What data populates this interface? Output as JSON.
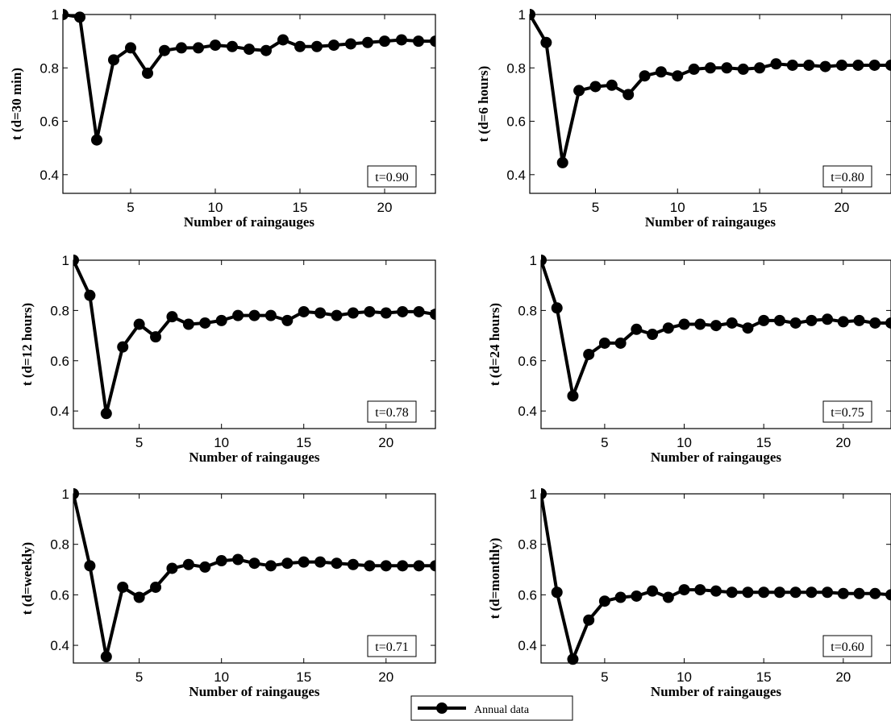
{
  "chart_data": [
    {
      "type": "line",
      "xlabel": "Number of raingauges",
      "ylabel": "t (d=30 min)",
      "annotation": "t=0.90",
      "xlim": [
        1,
        23
      ],
      "ylim": [
        0.33,
        1.0
      ],
      "xticks": [
        5,
        10,
        15,
        20
      ],
      "yticks": [
        0.4,
        0.6,
        0.8,
        1
      ],
      "x": [
        1,
        2,
        3,
        4,
        5,
        6,
        7,
        8,
        9,
        10,
        11,
        12,
        13,
        14,
        15,
        16,
        17,
        18,
        19,
        20,
        21,
        22,
        23
      ],
      "series": [
        {
          "values": [
            1.0,
            0.99,
            0.53,
            0.83,
            0.875,
            0.78,
            0.865,
            0.875,
            0.875,
            0.885,
            0.88,
            0.87,
            0.865,
            0.905,
            0.88,
            0.88,
            0.885,
            0.89,
            0.895,
            0.9,
            0.905,
            0.9,
            0.9
          ]
        }
      ]
    },
    {
      "type": "line",
      "xlabel": "Number of raingauges",
      "ylabel": "t (d=6 hours)",
      "annotation": "t=0.80",
      "xlim": [
        1,
        23
      ],
      "ylim": [
        0.33,
        1.0
      ],
      "xticks": [
        5,
        10,
        15,
        20
      ],
      "yticks": [
        0.4,
        0.6,
        0.8,
        1
      ],
      "x": [
        1,
        2,
        3,
        4,
        5,
        6,
        7,
        8,
        9,
        10,
        11,
        12,
        13,
        14,
        15,
        16,
        17,
        18,
        19,
        20,
        21,
        22,
        23
      ],
      "series": [
        {
          "values": [
            1.0,
            0.895,
            0.445,
            0.715,
            0.73,
            0.735,
            0.7,
            0.77,
            0.785,
            0.77,
            0.795,
            0.8,
            0.8,
            0.795,
            0.8,
            0.815,
            0.81,
            0.81,
            0.805,
            0.81,
            0.81,
            0.81,
            0.81
          ]
        }
      ]
    },
    {
      "type": "line",
      "xlabel": "Number of raingauges",
      "ylabel": "t (d=12 hours)",
      "annotation": "t=0.78",
      "xlim": [
        1,
        23
      ],
      "ylim": [
        0.33,
        1.0
      ],
      "xticks": [
        5,
        10,
        15,
        20
      ],
      "yticks": [
        0.4,
        0.6,
        0.8,
        1
      ],
      "x": [
        1,
        2,
        3,
        4,
        5,
        6,
        7,
        8,
        9,
        10,
        11,
        12,
        13,
        14,
        15,
        16,
        17,
        18,
        19,
        20,
        21,
        22,
        23
      ],
      "series": [
        {
          "values": [
            1.0,
            0.86,
            0.39,
            0.655,
            0.745,
            0.695,
            0.775,
            0.745,
            0.75,
            0.76,
            0.78,
            0.78,
            0.78,
            0.76,
            0.795,
            0.79,
            0.78,
            0.79,
            0.795,
            0.79,
            0.795,
            0.795,
            0.785
          ]
        }
      ]
    },
    {
      "type": "line",
      "xlabel": "Number of raingauges",
      "ylabel": "t (d=24 hours)",
      "annotation": "t=0.75",
      "xlim": [
        1,
        23
      ],
      "ylim": [
        0.33,
        1.0
      ],
      "xticks": [
        5,
        10,
        15,
        20
      ],
      "yticks": [
        0.4,
        0.6,
        0.8,
        1
      ],
      "x": [
        1,
        2,
        3,
        4,
        5,
        6,
        7,
        8,
        9,
        10,
        11,
        12,
        13,
        14,
        15,
        16,
        17,
        18,
        19,
        20,
        21,
        22,
        23
      ],
      "series": [
        {
          "values": [
            1.0,
            0.81,
            0.46,
            0.625,
            0.67,
            0.67,
            0.725,
            0.705,
            0.73,
            0.745,
            0.745,
            0.74,
            0.75,
            0.73,
            0.76,
            0.76,
            0.75,
            0.76,
            0.765,
            0.755,
            0.76,
            0.75,
            0.75
          ]
        }
      ]
    },
    {
      "type": "line",
      "xlabel": "Number of raingauges",
      "ylabel": "t (d=weekly)",
      "annotation": "t=0.71",
      "xlim": [
        1,
        23
      ],
      "ylim": [
        0.33,
        1.0
      ],
      "xticks": [
        5,
        10,
        15,
        20
      ],
      "yticks": [
        0.4,
        0.6,
        0.8,
        1
      ],
      "x": [
        1,
        2,
        3,
        4,
        5,
        6,
        7,
        8,
        9,
        10,
        11,
        12,
        13,
        14,
        15,
        16,
        17,
        18,
        19,
        20,
        21,
        22,
        23
      ],
      "series": [
        {
          "values": [
            1.0,
            0.715,
            0.355,
            0.63,
            0.59,
            0.63,
            0.705,
            0.72,
            0.71,
            0.735,
            0.74,
            0.725,
            0.715,
            0.725,
            0.73,
            0.73,
            0.725,
            0.72,
            0.715,
            0.715,
            0.715,
            0.715,
            0.715
          ]
        }
      ]
    },
    {
      "type": "line",
      "xlabel": "Number of raingauges",
      "ylabel": "t (d=monthly)",
      "annotation": "t=0.60",
      "xlim": [
        1,
        23
      ],
      "ylim": [
        0.33,
        1.0
      ],
      "xticks": [
        5,
        10,
        15,
        20
      ],
      "yticks": [
        0.4,
        0.6,
        0.8,
        1
      ],
      "x": [
        1,
        2,
        3,
        4,
        5,
        6,
        7,
        8,
        9,
        10,
        11,
        12,
        13,
        14,
        15,
        16,
        17,
        18,
        19,
        20,
        21,
        22,
        23
      ],
      "series": [
        {
          "values": [
            1.0,
            0.61,
            0.345,
            0.5,
            0.575,
            0.59,
            0.595,
            0.615,
            0.59,
            0.62,
            0.62,
            0.615,
            0.61,
            0.61,
            0.61,
            0.61,
            0.61,
            0.61,
            0.61,
            0.605,
            0.605,
            0.605,
            0.6
          ]
        }
      ]
    }
  ],
  "legend": {
    "label": "Annual data",
    "placement": "bottom-center"
  },
  "colors": {
    "line": "#000000",
    "marker": "#000000",
    "axes": "#000000"
  }
}
